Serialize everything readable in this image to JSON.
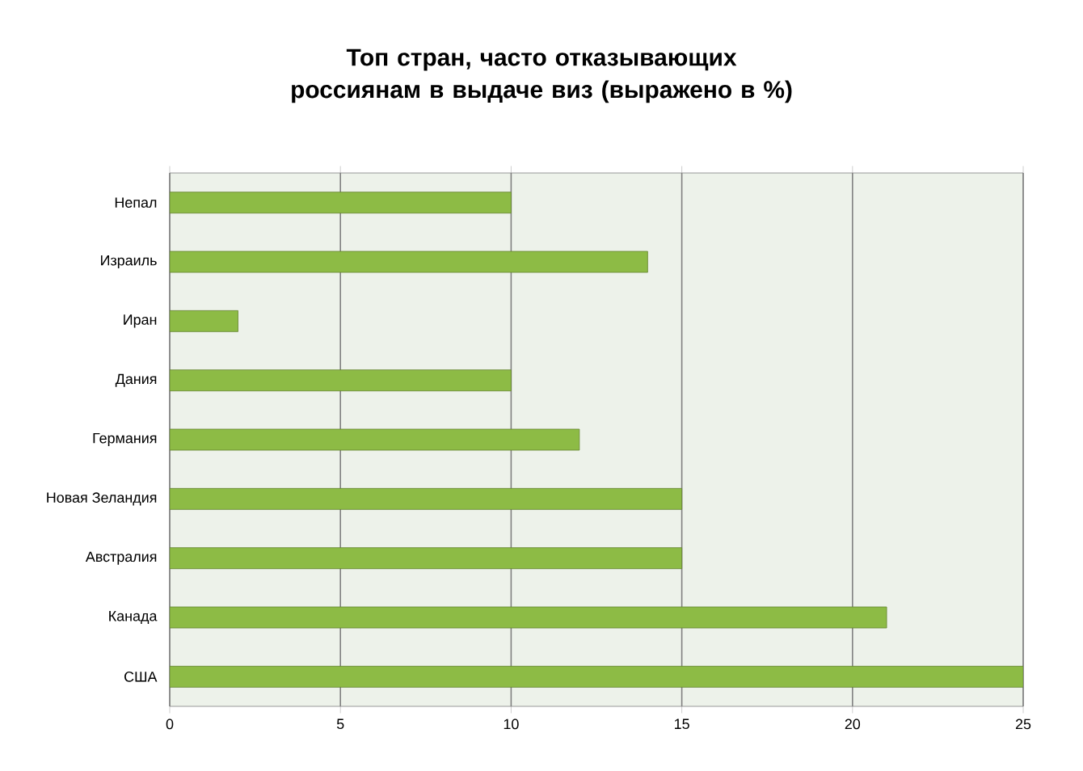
{
  "chart_data": {
    "type": "bar",
    "orientation": "horizontal",
    "title": "Топ стран, часто отказывающих россиянам в выдаче виз (выражено в %)",
    "categories": [
      "Непал",
      "Израиль",
      "Иран",
      "Дания",
      "Германия",
      "Новая Зеландия",
      "Австралия",
      "Канада",
      "США"
    ],
    "values": [
      10,
      14,
      2,
      10,
      12,
      15,
      15,
      21,
      25
    ],
    "color": "#8dbb45",
    "xlim": [
      0,
      25
    ],
    "xticks": [
      0,
      5,
      10,
      15,
      20,
      25
    ],
    "grid": "x"
  }
}
